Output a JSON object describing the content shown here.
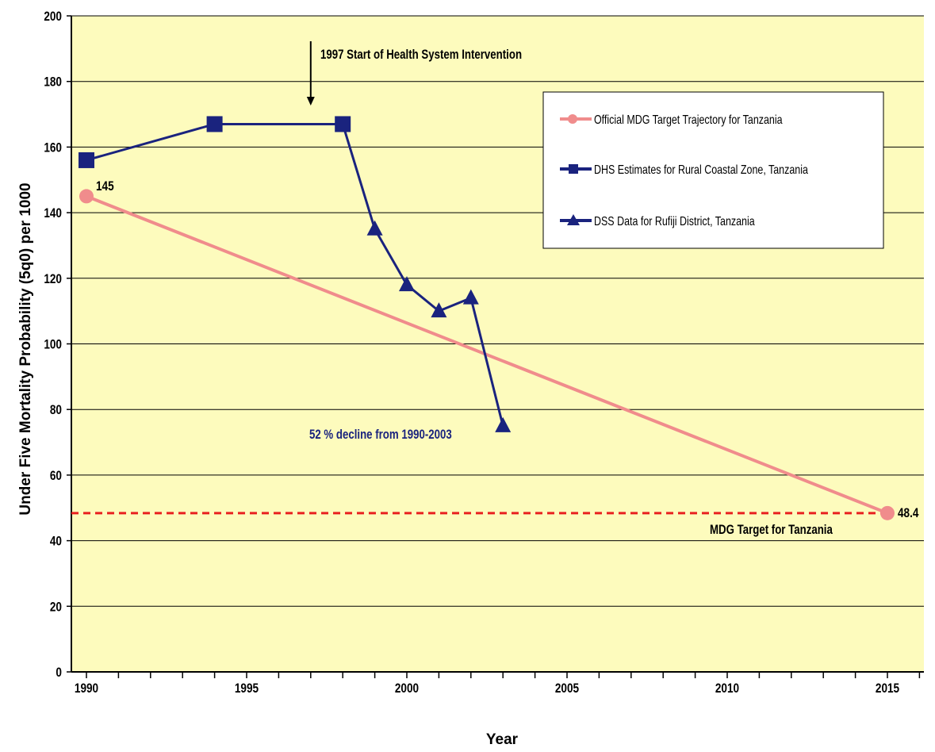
{
  "chart_data": {
    "type": "line",
    "ylabel": "Under Five Mortality Probability (5q0) per 1000",
    "xlabel": "Year",
    "xlim": [
      1990,
      2016
    ],
    "ylim": [
      0,
      200
    ],
    "yticks": [
      0,
      20,
      40,
      60,
      80,
      100,
      120,
      140,
      160,
      180,
      200
    ],
    "xticks": [
      1990,
      1995,
      2000,
      2005,
      2010,
      2015
    ],
    "grid": true,
    "legend_position": "top-right",
    "series": [
      {
        "name": "Official MDG Target Trajectory for Tanzania",
        "color": "#f08c8c",
        "marker": "circle",
        "x": [
          1990,
          2015
        ],
        "y": [
          145,
          48.4
        ]
      },
      {
        "name": "DHS Estimates for Rural Coastal Zone, Tanzania",
        "color": "#1a237e",
        "marker": "square",
        "x": [
          1990,
          1994,
          1998
        ],
        "y": [
          156,
          167,
          167
        ]
      },
      {
        "name": "DSS Data for Rufiji District, Tanzania",
        "color": "#1a237e",
        "marker": "triangle",
        "x": [
          1998,
          1999,
          2000,
          2001,
          2002,
          2003
        ],
        "y": [
          167,
          135,
          118,
          110,
          114,
          75
        ]
      }
    ],
    "reference_line": {
      "y": 48.4,
      "color": "#e82020",
      "label": "MDG Target for Tanzania"
    },
    "annotations": {
      "intervention": "1997 Start of Health System Intervention",
      "intervention_year": 1997,
      "decline": "52 % decline from 1990-2003",
      "start_value": "145",
      "end_value": "48.4"
    },
    "colors": {
      "plot_background": "#fdfbbd",
      "page_background": "#ffffff"
    }
  }
}
